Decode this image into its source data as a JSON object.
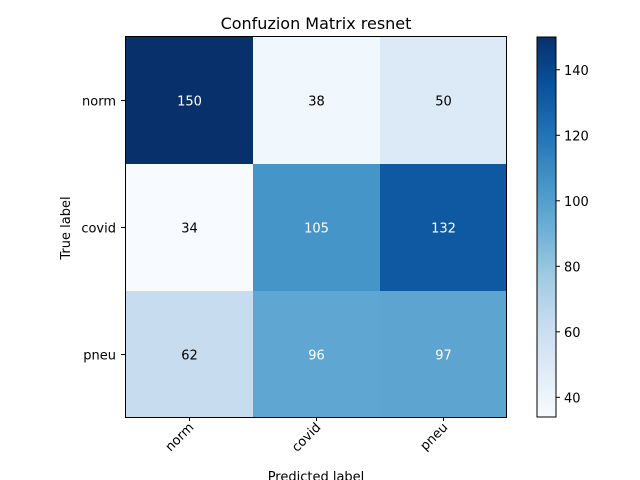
{
  "chart_data": {
    "type": "heatmap",
    "title": "Confuzion Matrix resnet",
    "xlabel": "Predicted label",
    "ylabel": "True label",
    "x_categories": [
      "norm",
      "covid",
      "pneu"
    ],
    "y_categories": [
      "norm",
      "covid",
      "pneu"
    ],
    "values": [
      [
        150,
        38,
        50
      ],
      [
        34,
        105,
        132
      ],
      [
        62,
        96,
        97
      ]
    ],
    "colormap": "Blues",
    "color_range": [
      34,
      150
    ],
    "colorbar_ticks": [
      40,
      60,
      80,
      100,
      120,
      140
    ],
    "text_color_light": "#ffffff",
    "text_color_dark": "#000000",
    "grid": false
  }
}
